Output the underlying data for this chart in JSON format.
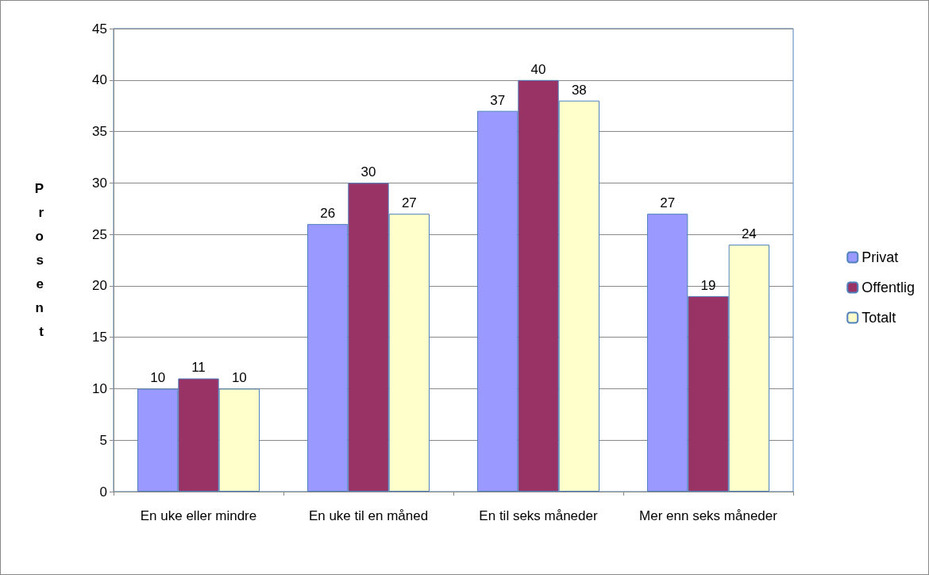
{
  "chart_data": {
    "type": "bar",
    "ylabel": "Prosent",
    "categories": [
      "En uke eller mindre",
      "En uke til en måned",
      "En til seks måneder",
      "Mer enn seks måneder"
    ],
    "series": [
      {
        "name": "Privat",
        "color": "#9999ff",
        "values": [
          10,
          26,
          37,
          27
        ]
      },
      {
        "name": "Offentlig",
        "color": "#993366",
        "values": [
          11,
          30,
          40,
          19
        ]
      },
      {
        "name": "Totalt",
        "color": "#ffffcc",
        "values": [
          10,
          27,
          38,
          24
        ]
      }
    ],
    "ylim": [
      0,
      45
    ],
    "yticks": [
      0,
      5,
      10,
      15,
      20,
      25,
      30,
      35,
      40,
      45
    ],
    "grid": "y",
    "legend": "right",
    "data_labels": true
  }
}
